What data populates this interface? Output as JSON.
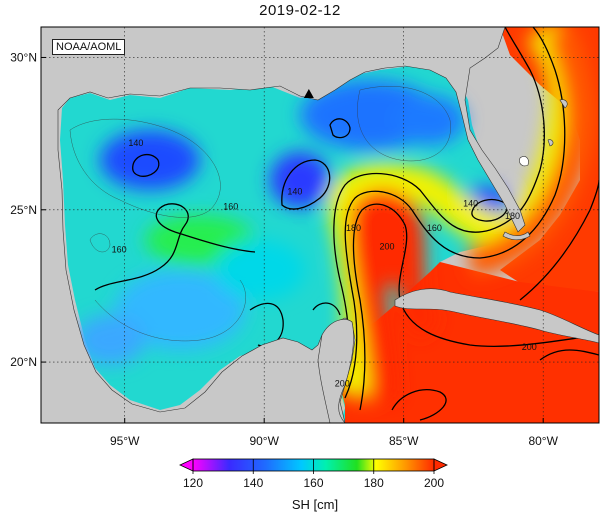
{
  "figure": {
    "title": "2019-02-12",
    "source_label": "NOAA/AOML"
  },
  "colors": {
    "land": "#c8c8c8",
    "scale": [
      "#ff00ff",
      "#1f1fff",
      "#00c8ff",
      "#00f0a0",
      "#20e020",
      "#ffff00",
      "#ff9900",
      "#ff2a00"
    ]
  },
  "map": {
    "lon_range": [
      -98,
      -78
    ],
    "lat_range": [
      18,
      31
    ],
    "lon_ticks": [
      {
        "value": -95,
        "label": "95°W"
      },
      {
        "value": -90,
        "label": "90°W"
      },
      {
        "value": -85,
        "label": "85°W"
      },
      {
        "value": -80,
        "label": "80°W"
      }
    ],
    "lat_ticks": [
      {
        "value": 20,
        "label": "20°N"
      },
      {
        "value": 25,
        "label": "25°N"
      },
      {
        "value": 30,
        "label": "30°N"
      }
    ],
    "grid": "dotted",
    "marker": {
      "type": "triangle",
      "lon": -88.4,
      "lat": 28.8
    }
  },
  "chart_data": {
    "type": "heatmap",
    "variable": "SH",
    "units": "cm",
    "contour_labels": [
      {
        "value": 140,
        "text": "140",
        "lon": -94.6,
        "lat": 27.2
      },
      {
        "value": 140,
        "text": "140",
        "lon": -88.9,
        "lat": 25.6
      },
      {
        "value": 140,
        "text": "140",
        "lon": -82.6,
        "lat": 25.2
      },
      {
        "value": 160,
        "text": "160",
        "lon": -91.2,
        "lat": 25.1
      },
      {
        "value": 160,
        "text": "160",
        "lon": -95.2,
        "lat": 23.7
      },
      {
        "value": 160,
        "text": "160",
        "lon": -83.9,
        "lat": 24.4
      },
      {
        "value": 180,
        "text": "180",
        "lon": -86.8,
        "lat": 24.4
      },
      {
        "value": 180,
        "text": "180",
        "lon": -81.1,
        "lat": 24.8
      },
      {
        "value": 200,
        "text": "200",
        "lon": -85.6,
        "lat": 23.8
      },
      {
        "value": 200,
        "text": "200",
        "lon": -87.2,
        "lat": 19.3
      },
      {
        "value": 200,
        "text": "200",
        "lon": -80.5,
        "lat": 20.5
      }
    ],
    "colorbar": {
      "label": "SH [cm]",
      "min": 120,
      "max": 200,
      "ticks": [
        {
          "value": 120,
          "label": "120"
        },
        {
          "value": 140,
          "label": "140"
        },
        {
          "value": 160,
          "label": "160"
        },
        {
          "value": 180,
          "label": "180"
        },
        {
          "value": 200,
          "label": "200"
        }
      ],
      "extend": "both"
    }
  }
}
